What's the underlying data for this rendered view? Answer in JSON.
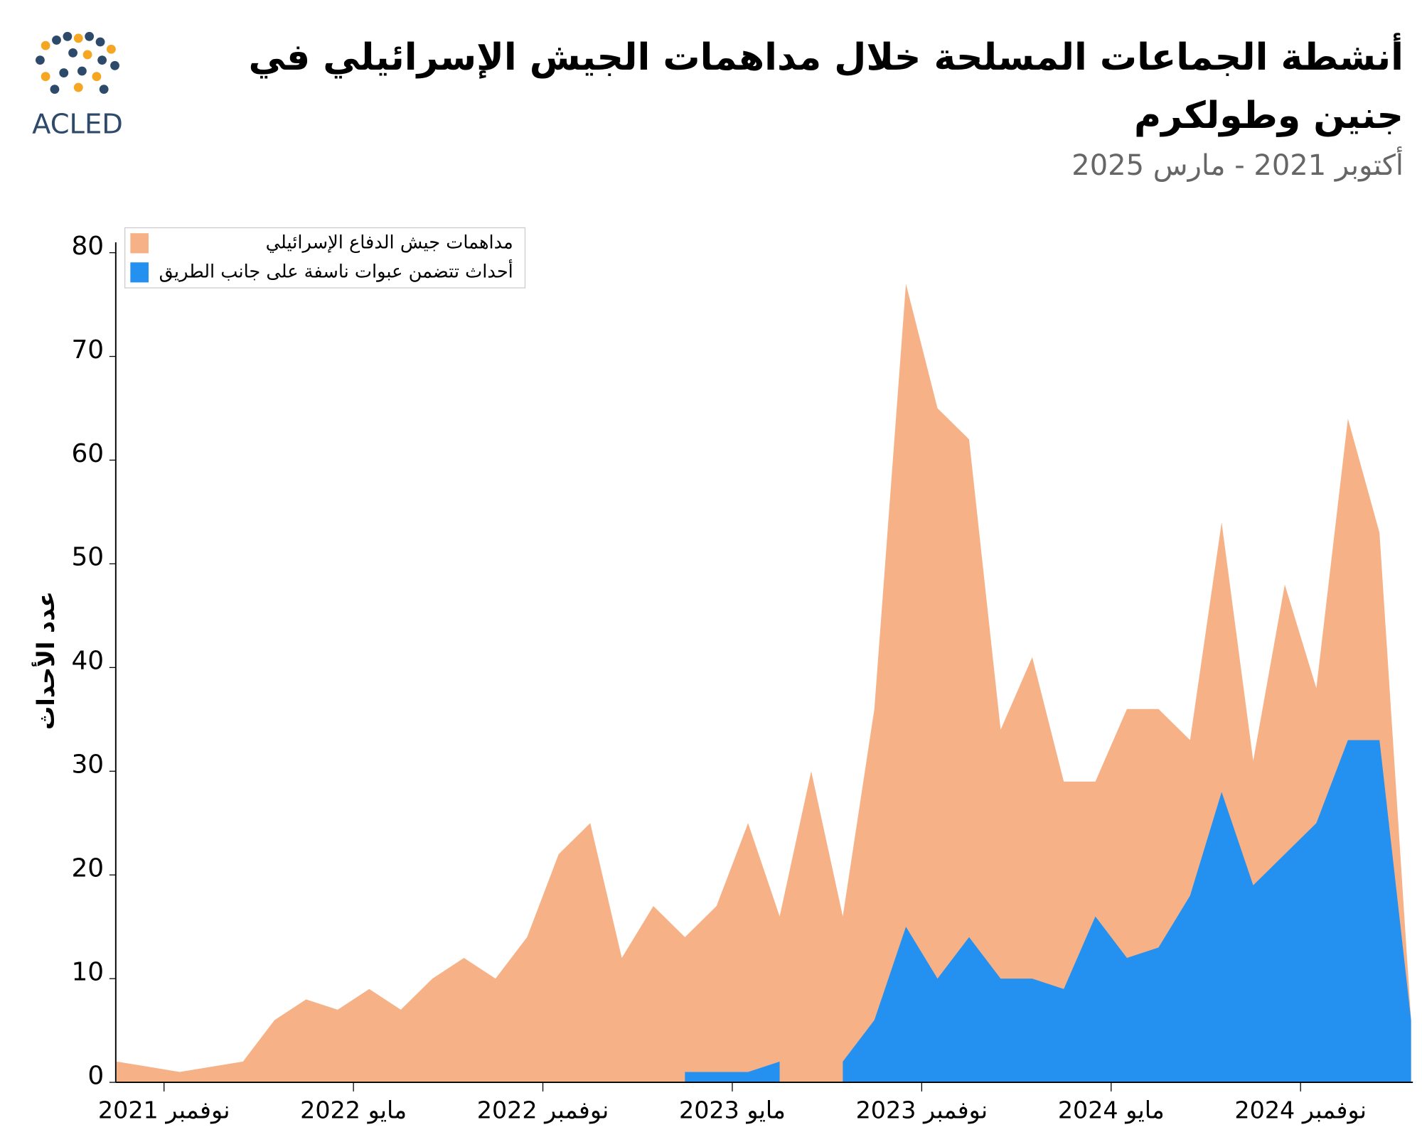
{
  "logo_text": "ACLED",
  "chart_data": {
    "type": "area",
    "title": "أنشطة الجماعات المسلحة خلال مداهمات الجيش الإسرائيلي في جنين وطولكرم",
    "subtitle": "أكتوبر 2021 - مارس 2025",
    "y_label": "عدد الأحداث",
    "x": [
      "2021-10",
      "2021-11",
      "2021-12",
      "2022-01",
      "2022-02",
      "2022-03",
      "2022-04",
      "2022-05",
      "2022-06",
      "2022-07",
      "2022-08",
      "2022-09",
      "2022-10",
      "2022-11",
      "2022-12",
      "2023-01",
      "2023-02",
      "2023-03",
      "2023-04",
      "2023-05",
      "2023-06",
      "2023-07",
      "2023-08",
      "2023-09",
      "2023-10",
      "2023-11",
      "2023-12",
      "2024-01",
      "2024-02",
      "2024-03",
      "2024-04",
      "2024-05",
      "2024-06",
      "2024-07",
      "2024-08",
      "2024-09",
      "2024-10",
      "2024-11",
      "2024-12",
      "2025-01",
      "2025-02",
      "2025-03"
    ],
    "series": [
      {
        "name": "مداهمات جيش الدفاع الإسرائيلي",
        "color": "#f7b186",
        "values": [
          2,
          1.5,
          1,
          1.5,
          2,
          6,
          8,
          7,
          9,
          7,
          10,
          12,
          10,
          14,
          22,
          25,
          12,
          17,
          14,
          17,
          25,
          16,
          30,
          16,
          36,
          77,
          65,
          62,
          34,
          41,
          29,
          29,
          36,
          36,
          33,
          54,
          31,
          48,
          38,
          64,
          53,
          6
        ]
      },
      {
        "name": "أحداث تتضمن عبوات ناسفة على جانب الطريق",
        "color": "#2490f0",
        "values": [
          null,
          null,
          null,
          null,
          null,
          null,
          null,
          null,
          null,
          null,
          null,
          null,
          null,
          null,
          null,
          null,
          null,
          null,
          1,
          1,
          1,
          2,
          null,
          2,
          6,
          15,
          10,
          14,
          10,
          10,
          9,
          16,
          12,
          13,
          18,
          28,
          19,
          22,
          25,
          33,
          33,
          6
        ]
      }
    ],
    "ylim": [
      0,
      81
    ],
    "yticks": [
      0,
      10,
      20,
      30,
      40,
      50,
      60,
      70,
      80
    ],
    "xticks": [
      {
        "value": "2021-11",
        "label": "نوفمبر 2021"
      },
      {
        "value": "2022-05",
        "label": "مايو 2022"
      },
      {
        "value": "2022-11",
        "label": "نوفمبر 2022"
      },
      {
        "value": "2023-05",
        "label": "مايو 2023"
      },
      {
        "value": "2023-11",
        "label": "نوفمبر 2023"
      },
      {
        "value": "2024-05",
        "label": "مايو 2024"
      },
      {
        "value": "2024-11",
        "label": "نوفمبر 2024"
      }
    ],
    "legend": "top-left"
  }
}
